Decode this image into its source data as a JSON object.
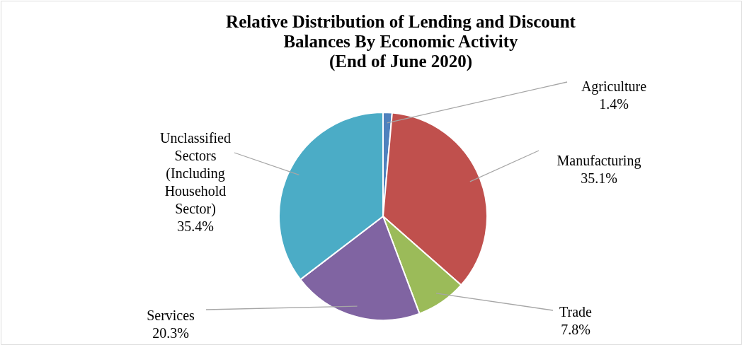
{
  "chart_data": {
    "type": "pie",
    "title": "Relative Distribution of Lending and Discount Balances By Economic Activity",
    "subtitle": "(End of June 2020)",
    "categories": [
      "Agriculture",
      "Manufacturing",
      "Trade",
      "Services",
      "Unclassified Sectors (Including Household Sector)"
    ],
    "values": [
      1.4,
      35.1,
      7.8,
      20.3,
      35.4
    ],
    "value_labels": [
      "1.4%",
      "35.1%",
      "7.8%",
      "20.3%",
      "35.4%"
    ],
    "colors": [
      "#4f81bd",
      "#c0504d",
      "#9bbb59",
      "#8064a2",
      "#4bacc6"
    ]
  }
}
